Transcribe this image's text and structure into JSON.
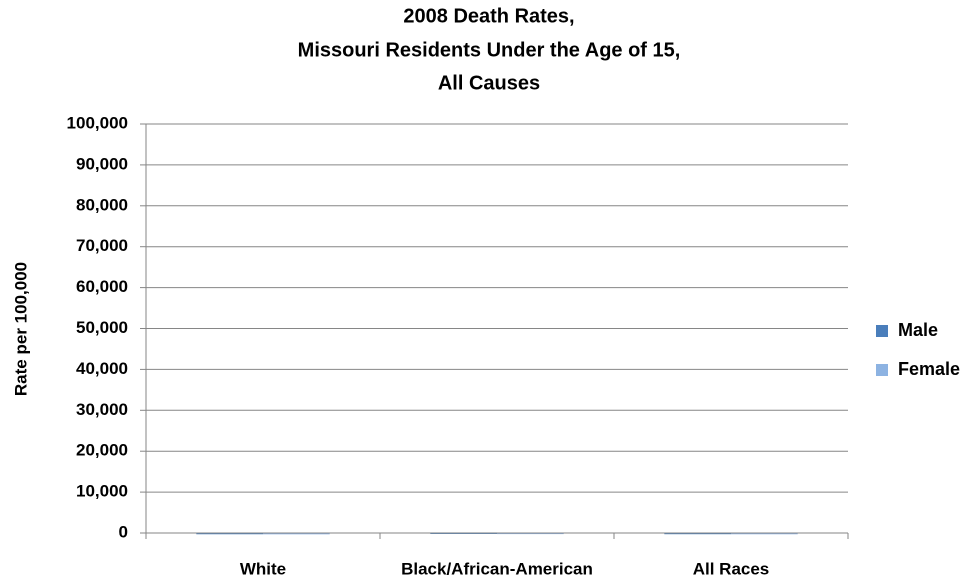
{
  "chart_data": {
    "type": "bar",
    "title": [
      "2008 Death Rates,",
      "Missouri Residents Under the Age of 15,",
      "All Causes"
    ],
    "y_label": "Rate per 100,000",
    "categories": [
      "White",
      "Black/African-American",
      "All Races"
    ],
    "series": [
      {
        "name": "Male",
        "color": "#4a7ebb",
        "values": [
          60,
          130,
          70
        ]
      },
      {
        "name": "Female",
        "color": "#8db3e2",
        "values": [
          45,
          100,
          55
        ]
      }
    ],
    "ylim": [
      0,
      100000
    ],
    "yticks": [
      0,
      {
        "value": 10000,
        "label": "10,000"
      },
      {
        "value": 20000,
        "label": "20,000"
      },
      {
        "value": 30000,
        "label": "30,000"
      },
      {
        "value": 40000,
        "label": "40,000"
      },
      {
        "value": 50000,
        "label": "50,000"
      },
      {
        "value": 60000,
        "label": "60,000"
      },
      {
        "value": 70000,
        "label": "70,000"
      },
      {
        "value": 80000,
        "label": "80,000"
      },
      {
        "value": 90000,
        "label": "90,000"
      },
      {
        "value": 100000,
        "label": "100,000"
      }
    ],
    "grid": true,
    "legend": "right"
  }
}
